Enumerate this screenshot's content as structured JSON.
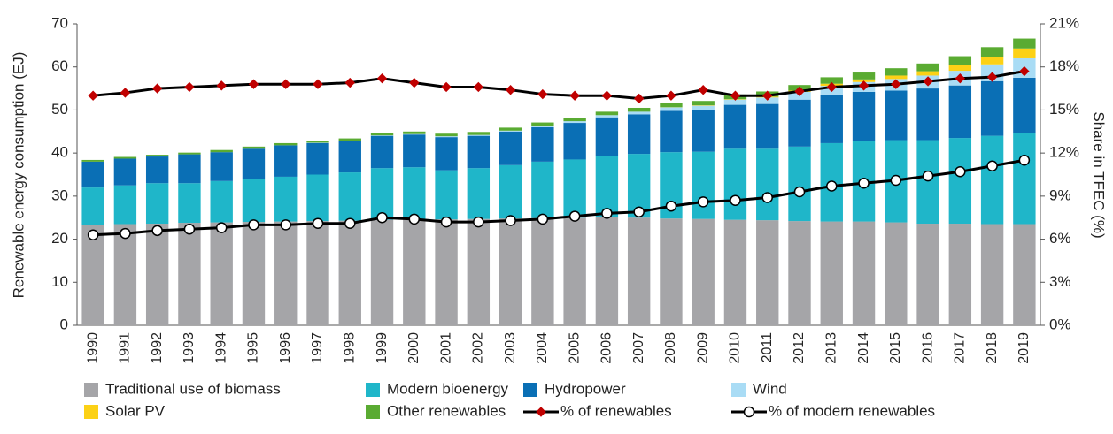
{
  "chart_data": {
    "type": "bar",
    "stacked": true,
    "ylabel": "Renewable energy consumption (EJ)",
    "y2label": "Share in TFEC (%)",
    "categories": [
      "1990",
      "1991",
      "1992",
      "1993",
      "1994",
      "1995",
      "1996",
      "1997",
      "1998",
      "1999",
      "2000",
      "2001",
      "2002",
      "2003",
      "2004",
      "2005",
      "2006",
      "2007",
      "2008",
      "2009",
      "2010",
      "2011",
      "2012",
      "2013",
      "2014",
      "2015",
      "2016",
      "2017",
      "2018",
      "2019"
    ],
    "ylim": [
      0,
      70
    ],
    "yticks": [
      0,
      10,
      20,
      30,
      40,
      50,
      60,
      70
    ],
    "y2lim": [
      0,
      21
    ],
    "y2ticks": [
      {
        "value": 0,
        "label": "0%"
      },
      {
        "value": 3,
        "label": "3%"
      },
      {
        "value": 6,
        "label": "6%"
      },
      {
        "value": 9,
        "label": "9%"
      },
      {
        "value": 12,
        "label": "12%"
      },
      {
        "value": 15,
        "label": "15%"
      },
      {
        "value": 18,
        "label": "18%"
      },
      {
        "value": 21,
        "label": "21%"
      }
    ],
    "series": [
      {
        "name": "Traditional use of biomass",
        "color": "#a5a5a8",
        "values": [
          23.3,
          23.5,
          23.6,
          23.8,
          23.9,
          24.0,
          24.1,
          24.2,
          24.3,
          24.5,
          24.6,
          24.6,
          24.7,
          24.8,
          24.9,
          25.0,
          25.1,
          25.0,
          24.8,
          24.7,
          24.5,
          24.4,
          24.2,
          24.1,
          24.1,
          23.9,
          23.6,
          23.6,
          23.5,
          23.5
        ]
      },
      {
        "name": "Modern bioenergy",
        "color": "#1fb6c9",
        "values": [
          8.7,
          9.0,
          9.4,
          9.2,
          9.6,
          10.0,
          10.4,
          10.8,
          11.2,
          12.0,
          12.1,
          11.4,
          11.8,
          12.4,
          13.1,
          13.5,
          14.2,
          14.8,
          15.4,
          15.6,
          16.5,
          16.6,
          17.3,
          18.2,
          18.7,
          19.1,
          19.4,
          19.9,
          20.5,
          21.2
        ]
      },
      {
        "name": "Hydropower",
        "color": "#0a6fb5",
        "values": [
          6.0,
          6.2,
          6.2,
          6.7,
          6.7,
          7.0,
          7.3,
          7.3,
          7.2,
          7.5,
          7.6,
          7.7,
          7.5,
          7.8,
          8.0,
          8.5,
          9.0,
          9.2,
          9.6,
          9.7,
          10.2,
          10.4,
          10.9,
          11.3,
          11.4,
          11.5,
          12.0,
          12.2,
          12.7,
          12.8
        ]
      },
      {
        "name": "Wind",
        "color": "#a9dcf5",
        "values": [
          0.0,
          0.0,
          0.0,
          0.0,
          0.0,
          0.0,
          0.0,
          0.1,
          0.1,
          0.1,
          0.1,
          0.2,
          0.2,
          0.2,
          0.3,
          0.4,
          0.5,
          0.6,
          0.8,
          1.0,
          1.2,
          1.5,
          1.8,
          2.0,
          2.3,
          2.7,
          3.0,
          3.4,
          3.9,
          4.5
        ]
      },
      {
        "name": "Solar PV",
        "color": "#fcd116",
        "values": [
          0,
          0,
          0,
          0,
          0,
          0,
          0,
          0,
          0,
          0,
          0,
          0,
          0,
          0,
          0,
          0,
          0,
          0,
          0.05,
          0.1,
          0.1,
          0.2,
          0.3,
          0.5,
          0.6,
          0.8,
          1.0,
          1.4,
          1.8,
          2.3
        ]
      },
      {
        "name": "Other renewables",
        "color": "#5aab32",
        "values": [
          0.4,
          0.4,
          0.4,
          0.4,
          0.5,
          0.5,
          0.5,
          0.5,
          0.6,
          0.6,
          0.6,
          0.6,
          0.7,
          0.7,
          0.8,
          0.8,
          0.8,
          0.9,
          0.9,
          1.0,
          1.1,
          1.2,
          1.3,
          1.5,
          1.6,
          1.7,
          1.8,
          2.0,
          2.2,
          2.3
        ]
      },
      {
        "name": "% of renewables",
        "color": "#000000",
        "marker_color": "#c00000",
        "marker": "diamond",
        "axis": "y2",
        "values": [
          16.0,
          16.2,
          16.5,
          16.6,
          16.7,
          16.8,
          16.8,
          16.8,
          16.9,
          17.2,
          16.9,
          16.6,
          16.6,
          16.4,
          16.1,
          16.0,
          16.0,
          15.8,
          16.0,
          16.4,
          16.0,
          16.0,
          16.3,
          16.6,
          16.7,
          16.8,
          17.0,
          17.2,
          17.3,
          17.7
        ]
      },
      {
        "name": "% of modern renewables",
        "color": "#000000",
        "marker_color": "#ffffff",
        "marker": "circle",
        "axis": "y2",
        "values": [
          6.3,
          6.4,
          6.6,
          6.7,
          6.8,
          7.0,
          7.0,
          7.1,
          7.1,
          7.5,
          7.4,
          7.2,
          7.2,
          7.3,
          7.4,
          7.6,
          7.8,
          7.9,
          8.3,
          8.6,
          8.7,
          8.9,
          9.3,
          9.7,
          9.9,
          10.1,
          10.4,
          10.7,
          11.1,
          11.5
        ]
      }
    ]
  }
}
